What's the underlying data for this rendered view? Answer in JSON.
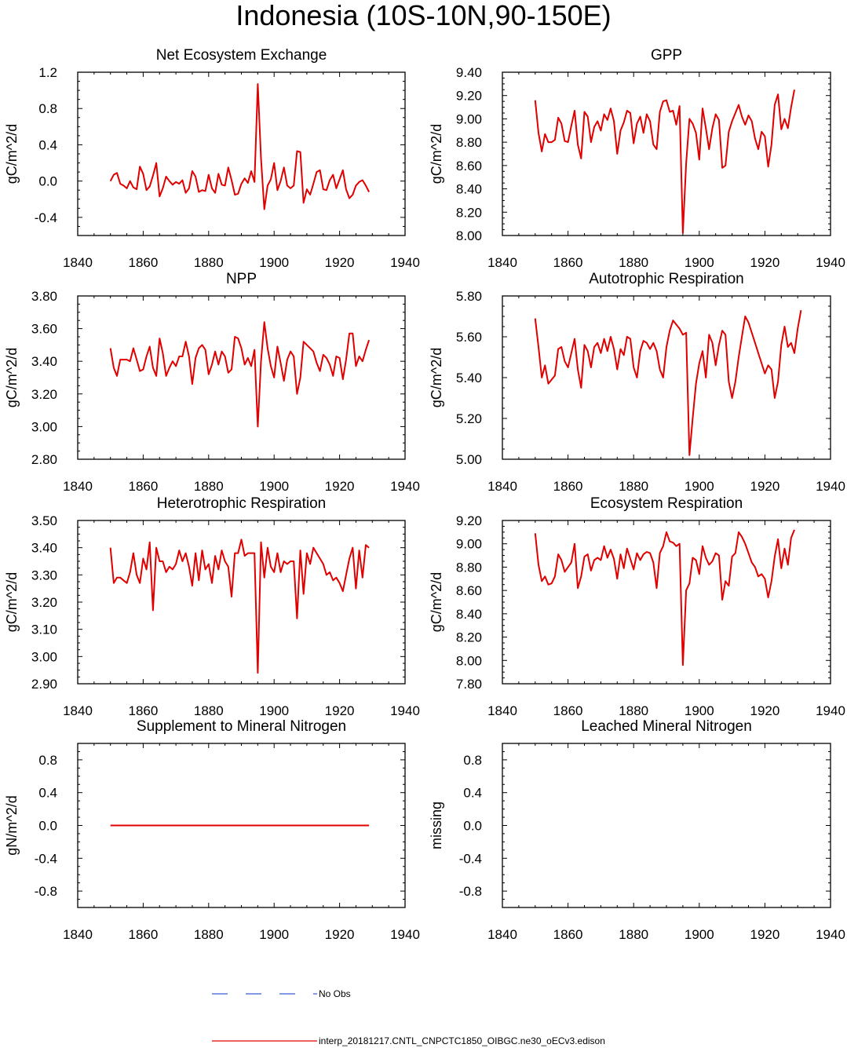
{
  "title": "Indonesia (10S-10N,90-150E)",
  "legend": {
    "obs_label": "No Obs",
    "obs_color": "#3b5bdb",
    "model_label": "interp_20181217.CNTL_CNPCTC1850_OIBGC.ne30_oECv3.edison",
    "model_color": "#e00000"
  },
  "chart_data": [
    {
      "type": "line",
      "title": "Net Ecosystem Exchange",
      "ylabel": "gC/m^2/d",
      "xlim": [
        1840,
        1940
      ],
      "ylim": [
        -0.6,
        1.2
      ],
      "xticks": [
        1840,
        1860,
        1880,
        1900,
        1920,
        1940
      ],
      "yticks": [
        1.2,
        0.8,
        0.4,
        0.0,
        -0.4
      ],
      "ytick_labels": [
        "1.2",
        "0.8",
        "0.4",
        "0.0",
        "-0.4"
      ],
      "x_start": 1850,
      "series": [
        {
          "values": [
            0.0,
            0.07,
            0.09,
            -0.03,
            -0.05,
            -0.08,
            0.0,
            -0.07,
            -0.09,
            0.16,
            0.08,
            -0.1,
            -0.06,
            0.06,
            0.2,
            -0.17,
            -0.08,
            0.05,
            0.0,
            -0.04,
            -0.01,
            -0.03,
            0.01,
            -0.13,
            -0.08,
            0.11,
            0.05,
            -0.12,
            -0.1,
            -0.11,
            0.07,
            -0.08,
            -0.13,
            0.08,
            -0.04,
            -0.05,
            0.15,
            0.01,
            -0.15,
            -0.14,
            -0.03,
            0.03,
            -0.02,
            0.11,
            -0.01,
            1.07,
            0.25,
            -0.31,
            -0.05,
            0.02,
            0.2,
            -0.1,
            0.0,
            0.15,
            -0.05,
            -0.08,
            -0.05,
            0.33,
            0.32,
            -0.24,
            -0.09,
            -0.15,
            -0.03,
            0.1,
            0.12,
            -0.09,
            -0.1,
            0.01,
            0.07,
            -0.08,
            0.02,
            0.12,
            -0.09,
            -0.19,
            -0.15,
            -0.05,
            -0.01,
            0.01,
            -0.05,
            -0.12
          ]
        }
      ]
    },
    {
      "type": "line",
      "title": "GPP",
      "ylabel": "gC/m^2/d",
      "xlim": [
        1840,
        1940
      ],
      "ylim": [
        8.0,
        9.4
      ],
      "xticks": [
        1840,
        1860,
        1880,
        1900,
        1920,
        1940
      ],
      "yticks": [
        9.4,
        9.2,
        9.0,
        8.8,
        8.6,
        8.4,
        8.2,
        8.0
      ],
      "ytick_labels": [
        "9.40",
        "9.20",
        "9.00",
        "8.80",
        "8.60",
        "8.40",
        "8.20",
        "8.00"
      ],
      "x_start": 1850,
      "series": [
        {
          "values": [
            9.16,
            8.88,
            8.72,
            8.87,
            8.8,
            8.8,
            8.82,
            9.01,
            8.96,
            8.81,
            8.8,
            8.94,
            9.07,
            8.78,
            8.66,
            9.06,
            9.02,
            8.8,
            8.93,
            8.98,
            8.9,
            9.04,
            8.99,
            9.09,
            8.98,
            8.7,
            8.9,
            8.97,
            9.07,
            9.05,
            8.79,
            8.96,
            9.02,
            8.88,
            9.04,
            8.98,
            8.78,
            8.74,
            9.06,
            9.15,
            9.16,
            9.06,
            9.07,
            8.95,
            9.11,
            8.02,
            8.62,
            9.0,
            8.96,
            8.88,
            8.65,
            9.09,
            8.92,
            8.74,
            8.92,
            9.04,
            8.99,
            8.58,
            8.6,
            8.89,
            8.98,
            9.05,
            9.12,
            9.02,
            8.95,
            9.03,
            8.98,
            8.83,
            8.74,
            8.89,
            8.85,
            8.59,
            8.78,
            9.12,
            9.21,
            8.91,
            9.0,
            8.92,
            9.1,
            9.25
          ]
        }
      ]
    },
    {
      "type": "line",
      "title": "NPP",
      "ylabel": "gC/m^2/d",
      "xlim": [
        1840,
        1940
      ],
      "ylim": [
        2.8,
        3.8
      ],
      "xticks": [
        1840,
        1860,
        1880,
        1900,
        1920,
        1940
      ],
      "yticks": [
        3.8,
        3.6,
        3.4,
        3.2,
        3.0,
        2.8
      ],
      "ytick_labels": [
        "3.80",
        "3.60",
        "3.40",
        "3.20",
        "3.00",
        "2.80"
      ],
      "x_start": 1850,
      "series": [
        {
          "values": [
            3.48,
            3.36,
            3.31,
            3.41,
            3.41,
            3.41,
            3.4,
            3.48,
            3.41,
            3.34,
            3.35,
            3.43,
            3.49,
            3.36,
            3.31,
            3.54,
            3.45,
            3.31,
            3.36,
            3.4,
            3.37,
            3.43,
            3.43,
            3.52,
            3.43,
            3.26,
            3.42,
            3.48,
            3.5,
            3.47,
            3.32,
            3.38,
            3.46,
            3.38,
            3.46,
            3.43,
            3.33,
            3.35,
            3.55,
            3.54,
            3.48,
            3.38,
            3.42,
            3.37,
            3.47,
            3.0,
            3.4,
            3.64,
            3.48,
            3.37,
            3.3,
            3.49,
            3.39,
            3.28,
            3.41,
            3.46,
            3.43,
            3.2,
            3.3,
            3.52,
            3.5,
            3.48,
            3.46,
            3.39,
            3.34,
            3.44,
            3.42,
            3.38,
            3.31,
            3.43,
            3.42,
            3.29,
            3.41,
            3.57,
            3.57,
            3.37,
            3.43,
            3.4,
            3.47,
            3.53
          ]
        }
      ]
    },
    {
      "type": "line",
      "title": "Autotrophic Respiration",
      "ylabel": "gC/m^2/d",
      "xlim": [
        1840,
        1940
      ],
      "ylim": [
        5.0,
        5.8
      ],
      "xticks": [
        1840,
        1860,
        1880,
        1900,
        1920,
        1940
      ],
      "yticks": [
        5.8,
        5.6,
        5.4,
        5.2,
        5.0
      ],
      "ytick_labels": [
        "5.80",
        "5.60",
        "5.40",
        "5.20",
        "5.00"
      ],
      "x_start": 1850,
      "series": [
        {
          "values": [
            5.69,
            5.55,
            5.4,
            5.46,
            5.37,
            5.39,
            5.41,
            5.54,
            5.55,
            5.48,
            5.45,
            5.52,
            5.59,
            5.44,
            5.35,
            5.56,
            5.53,
            5.45,
            5.55,
            5.57,
            5.52,
            5.59,
            5.53,
            5.6,
            5.54,
            5.44,
            5.54,
            5.51,
            5.6,
            5.59,
            5.45,
            5.4,
            5.53,
            5.58,
            5.57,
            5.54,
            5.57,
            5.53,
            5.44,
            5.4,
            5.55,
            5.63,
            5.68,
            5.66,
            5.64,
            5.61,
            5.62,
            5.02,
            5.2,
            5.37,
            5.47,
            5.53,
            5.4,
            5.61,
            5.57,
            5.46,
            5.56,
            5.63,
            5.61,
            5.38,
            5.3,
            5.38,
            5.5,
            5.6,
            5.7,
            5.67,
            5.62,
            5.57,
            5.52,
            5.47,
            5.42,
            5.46,
            5.44,
            5.3,
            5.38,
            5.56,
            5.65,
            5.55,
            5.57,
            5.52,
            5.64,
            5.73
          ]
        }
      ]
    },
    {
      "type": "line",
      "title": "Heterotrophic Respiration",
      "ylabel": "gC/m^2/d",
      "xlim": [
        1840,
        1940
      ],
      "ylim": [
        2.9,
        3.5
      ],
      "xticks": [
        1840,
        1860,
        1880,
        1900,
        1920,
        1940
      ],
      "yticks": [
        3.5,
        3.4,
        3.3,
        3.2,
        3.1,
        3.0,
        2.9
      ],
      "ytick_labels": [
        "3.50",
        "3.40",
        "3.30",
        "3.20",
        "3.10",
        "3.00",
        "2.90"
      ],
      "x_start": 1850,
      "series": [
        {
          "values": [
            3.4,
            3.27,
            3.29,
            3.29,
            3.28,
            3.27,
            3.31,
            3.38,
            3.3,
            3.27,
            3.36,
            3.32,
            3.42,
            3.17,
            3.4,
            3.35,
            3.35,
            3.31,
            3.33,
            3.32,
            3.34,
            3.39,
            3.35,
            3.38,
            3.33,
            3.26,
            3.38,
            3.28,
            3.39,
            3.32,
            3.34,
            3.27,
            3.37,
            3.32,
            3.39,
            3.35,
            3.33,
            3.22,
            3.38,
            3.38,
            3.43,
            3.37,
            3.38,
            3.38,
            3.38,
            2.94,
            3.42,
            3.29,
            3.4,
            3.33,
            3.31,
            3.38,
            3.31,
            3.35,
            3.34,
            3.35,
            3.35,
            3.14,
            3.39,
            3.23,
            3.38,
            3.34,
            3.4,
            3.38,
            3.36,
            3.34,
            3.3,
            3.31,
            3.28,
            3.29,
            3.27,
            3.24,
            3.3,
            3.36,
            3.4,
            3.25,
            3.39,
            3.29,
            3.41,
            3.4
          ]
        }
      ]
    },
    {
      "type": "line",
      "title": "Ecosystem Respiration",
      "ylabel": "gC/m^2/d",
      "xlim": [
        1840,
        1940
      ],
      "ylim": [
        7.8,
        9.2
      ],
      "xticks": [
        1840,
        1860,
        1880,
        1900,
        1920,
        1940
      ],
      "yticks": [
        9.2,
        9.0,
        8.8,
        8.6,
        8.4,
        8.2,
        8.0,
        7.8
      ],
      "ytick_labels": [
        "9.20",
        "9.00",
        "8.80",
        "8.60",
        "8.40",
        "8.20",
        "8.00",
        "7.80"
      ],
      "x_start": 1850,
      "series": [
        {
          "values": [
            9.09,
            8.82,
            8.68,
            8.72,
            8.65,
            8.66,
            8.72,
            8.91,
            8.86,
            8.76,
            8.8,
            8.84,
            9.0,
            8.62,
            8.72,
            8.89,
            8.91,
            8.77,
            8.86,
            8.88,
            8.86,
            8.98,
            8.88,
            8.95,
            8.87,
            8.7,
            8.91,
            8.79,
            8.96,
            8.87,
            8.78,
            8.92,
            8.86,
            8.91,
            8.93,
            8.92,
            8.84,
            8.62,
            8.92,
            8.98,
            9.1,
            9.02,
            9.01,
            8.98,
            9.0,
            7.96,
            8.6,
            8.66,
            8.88,
            8.86,
            8.74,
            8.98,
            8.88,
            8.82,
            8.85,
            8.92,
            8.9,
            8.52,
            8.68,
            8.64,
            8.89,
            8.92,
            9.1,
            9.06,
            9.0,
            8.92,
            8.84,
            8.8,
            8.72,
            8.74,
            8.7,
            8.54,
            8.68,
            8.89,
            9.04,
            8.79,
            8.96,
            8.82,
            9.05,
            9.12
          ]
        }
      ]
    },
    {
      "type": "line",
      "title": "Supplement to Mineral Nitrogen",
      "ylabel": "gN/m^2/d",
      "xlim": [
        1840,
        1940
      ],
      "ylim": [
        -1.0,
        1.0
      ],
      "xticks": [
        1840,
        1860,
        1880,
        1900,
        1920,
        1940
      ],
      "yticks": [
        0.8,
        0.4,
        0.0,
        -0.4,
        -0.8
      ],
      "ytick_labels": [
        "0.8",
        "0.4",
        "0.0",
        "-0.4",
        "-0.8"
      ],
      "x_start": 1850,
      "series": [
        {
          "values": [
            0.0,
            0.0,
            0.0,
            0.0,
            0.0,
            0.0,
            0.0,
            0.0,
            0.0,
            0.0,
            0.0,
            0.0,
            0.0,
            0.0,
            0.0,
            0.0,
            0.0,
            0.0,
            0.0,
            0.0,
            0.0,
            0.0,
            0.0,
            0.0,
            0.0,
            0.0,
            0.0,
            0.0,
            0.0,
            0.0,
            0.0,
            0.0,
            0.0,
            0.0,
            0.0,
            0.0,
            0.0,
            0.0,
            0.0,
            0.0,
            0.0,
            0.0,
            0.0,
            0.0,
            0.0,
            0.0,
            0.0,
            0.0,
            0.0,
            0.0,
            0.0,
            0.0,
            0.0,
            0.0,
            0.0,
            0.0,
            0.0,
            0.0,
            0.0,
            0.0,
            0.0,
            0.0,
            0.0,
            0.0,
            0.0,
            0.0,
            0.0,
            0.0,
            0.0,
            0.0,
            0.0,
            0.0,
            0.0,
            0.0,
            0.0,
            0.0,
            0.0,
            0.0,
            0.0,
            0.0
          ]
        }
      ]
    },
    {
      "type": "line",
      "title": "Leached Mineral Nitrogen",
      "ylabel": "missing",
      "xlim": [
        1840,
        1940
      ],
      "ylim": [
        -1.0,
        1.0
      ],
      "xticks": [
        1840,
        1860,
        1880,
        1900,
        1920,
        1940
      ],
      "yticks": [
        0.8,
        0.4,
        0.0,
        -0.4,
        -0.8
      ],
      "ytick_labels": [
        "0.8",
        "0.4",
        "0.0",
        "-0.4",
        "-0.8"
      ],
      "x_start": 1850,
      "series": []
    }
  ]
}
